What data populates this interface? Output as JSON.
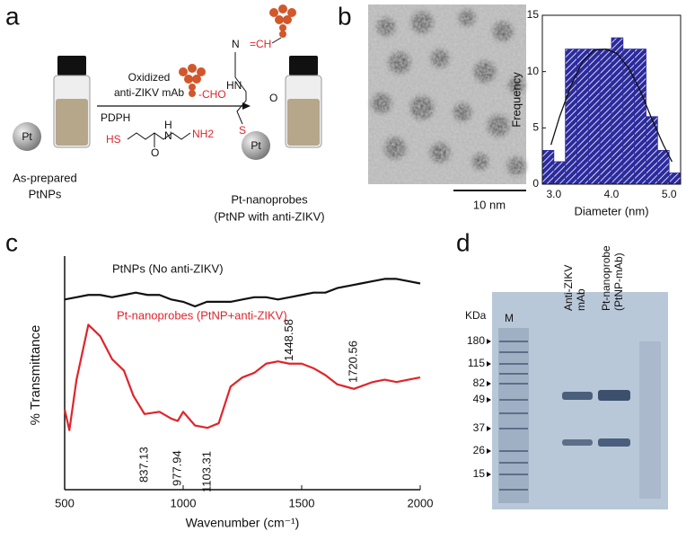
{
  "panels": {
    "a": {
      "label": "a",
      "oxidized": "Oxidized",
      "mab": "anti-ZIKV mAb",
      "cho": "-CHO",
      "pdph": "PDPH",
      "pt": "Pt",
      "reagent_hs": "HS",
      "reagent_h": "H",
      "reagent_n": "N",
      "reagent_o": "O",
      "reagent_nh2": "NH2",
      "linker_n": "N",
      "linker_ch": "=CH",
      "linker_hn": "HN",
      "linker_o": "O",
      "linker_s": "S",
      "start_label": [
        "As-prepared",
        "PtNPs"
      ],
      "product_label": [
        "Pt-nanoprobes",
        "(PtNP with anti-ZIKV)"
      ]
    },
    "b": {
      "label": "b",
      "scale_bar": "10 nm"
    },
    "c": {
      "label": "c"
    },
    "d": {
      "label": "d",
      "lane_m": "M",
      "lane_2": [
        "Anti-ZIKV",
        "mAb"
      ],
      "lane_3": [
        "Pt-nanoprobe",
        "(PtNP-mAb)"
      ],
      "unit": "KDa",
      "markers": [
        180,
        115,
        82,
        49,
        37,
        26,
        15
      ]
    }
  },
  "chart_data": [
    {
      "type": "histogram",
      "xlabel": "Diameter (nm)",
      "ylabel": "Frequency",
      "color": "#2b2b9e",
      "bins": [
        2.8,
        3.0,
        3.2,
        3.4,
        3.6,
        3.8,
        4.0,
        4.2,
        4.4,
        4.6,
        4.8,
        5.0,
        5.2
      ],
      "values": [
        3,
        2,
        12,
        12,
        12,
        12,
        13,
        12,
        12,
        6,
        3,
        1
      ],
      "fit": {
        "color": "#111111",
        "x": [
          2.95,
          3.1,
          3.3,
          3.5,
          3.7,
          3.9,
          4.1,
          4.3,
          4.5,
          4.7,
          4.9,
          5.05
        ],
        "values": [
          3.5,
          6,
          8.8,
          10.9,
          11.9,
          12,
          11.6,
          10.3,
          8.3,
          5.8,
          3.5,
          2
        ]
      },
      "xlim": [
        2.8,
        5.2
      ],
      "xticks": [
        {
          "value": 3,
          "label": "3.0"
        },
        {
          "value": 4,
          "label": "4.0"
        },
        {
          "value": 5,
          "label": "5.0"
        }
      ],
      "ylim": [
        0,
        15
      ],
      "yticks": [
        0,
        5,
        10,
        15
      ]
    },
    {
      "type": "line",
      "xlabel": "Wavenumber (cm⁻¹)",
      "ylabel": "% Transmittance",
      "xlim": [
        500,
        2000
      ],
      "xticks": [
        500,
        1000,
        1500,
        2000
      ],
      "ylim": [
        0,
        100
      ],
      "series": [
        {
          "name": "PtNPs (No anti-ZIKV)",
          "color": "#111111",
          "x": [
            500,
            550,
            600,
            650,
            700,
            750,
            800,
            850,
            900,
            950,
            1000,
            1050,
            1100,
            1150,
            1200,
            1250,
            1300,
            1350,
            1400,
            1450,
            1500,
            1550,
            1600,
            1650,
            1700,
            1750,
            1800,
            1850,
            1900,
            1950,
            2000
          ],
          "values": [
            83,
            84,
            85,
            85,
            84,
            85,
            86,
            85,
            85,
            83,
            82,
            80,
            82,
            82,
            82,
            83,
            84,
            84,
            83,
            84,
            85,
            86,
            86,
            88,
            89,
            90,
            91,
            92,
            92,
            91,
            90
          ]
        },
        {
          "name": "Pt-nanoprobes (PtNP+anti-ZIKV)",
          "color": "#e0242b",
          "x": [
            500,
            520,
            550,
            600,
            650,
            700,
            750,
            790,
            837,
            900,
            950,
            977,
            1000,
            1050,
            1103,
            1150,
            1200,
            1250,
            1300,
            1350,
            1400,
            1448,
            1500,
            1550,
            1600,
            1650,
            1720,
            1800,
            1850,
            1900,
            1950,
            2000
          ],
          "values": [
            35,
            26,
            48,
            72,
            67,
            57,
            52,
            41,
            33,
            34,
            31,
            30,
            34,
            28,
            27,
            29,
            45,
            49,
            51,
            55,
            56,
            55,
            55,
            53,
            50,
            46,
            44,
            47,
            48,
            47,
            48,
            49
          ]
        }
      ],
      "peak_labels": [
        837.13,
        977.94,
        1103.31,
        1448.58,
        1720.56
      ]
    }
  ]
}
